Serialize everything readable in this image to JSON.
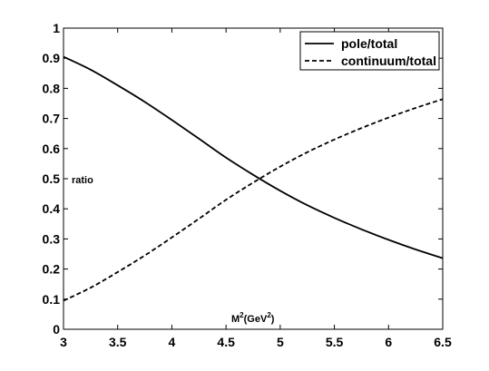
{
  "chart_data": {
    "type": "line",
    "title": "",
    "xlabel": "M²(GeV²)",
    "xlabel_base": "M",
    "xlabel_sup1": "2",
    "xlabel_mid": "(GeV",
    "xlabel_sup2": "2",
    "xlabel_end": ")",
    "ylabel": "ratio",
    "xlim": [
      3,
      6.5
    ],
    "ylim": [
      0,
      1
    ],
    "grid": false,
    "legend_position": "top-right",
    "x_ticks": [
      "3",
      "3.5",
      "4",
      "4.5",
      "5",
      "5.5",
      "6",
      "6.5"
    ],
    "y_ticks": [
      "0",
      "0.1",
      "0.2",
      "0.3",
      "0.4",
      "0.5",
      "0.6",
      "0.7",
      "0.8",
      "0.9",
      "1"
    ],
    "x": [
      3.0,
      3.25,
      3.5,
      3.75,
      4.0,
      4.25,
      4.5,
      4.75,
      5.0,
      5.25,
      5.5,
      5.75,
      6.0,
      6.25,
      6.5
    ],
    "series": [
      {
        "name": "pole/total",
        "style": "solid",
        "color": "#000000",
        "values": [
          0.905,
          0.862,
          0.81,
          0.755,
          0.695,
          0.633,
          0.57,
          0.513,
          0.46,
          0.412,
          0.37,
          0.332,
          0.297,
          0.265,
          0.236
        ]
      },
      {
        "name": "continuum/total",
        "style": "dashed",
        "color": "#000000",
        "values": [
          0.095,
          0.138,
          0.19,
          0.245,
          0.305,
          0.367,
          0.43,
          0.487,
          0.54,
          0.588,
          0.63,
          0.668,
          0.703,
          0.735,
          0.764
        ]
      }
    ]
  }
}
